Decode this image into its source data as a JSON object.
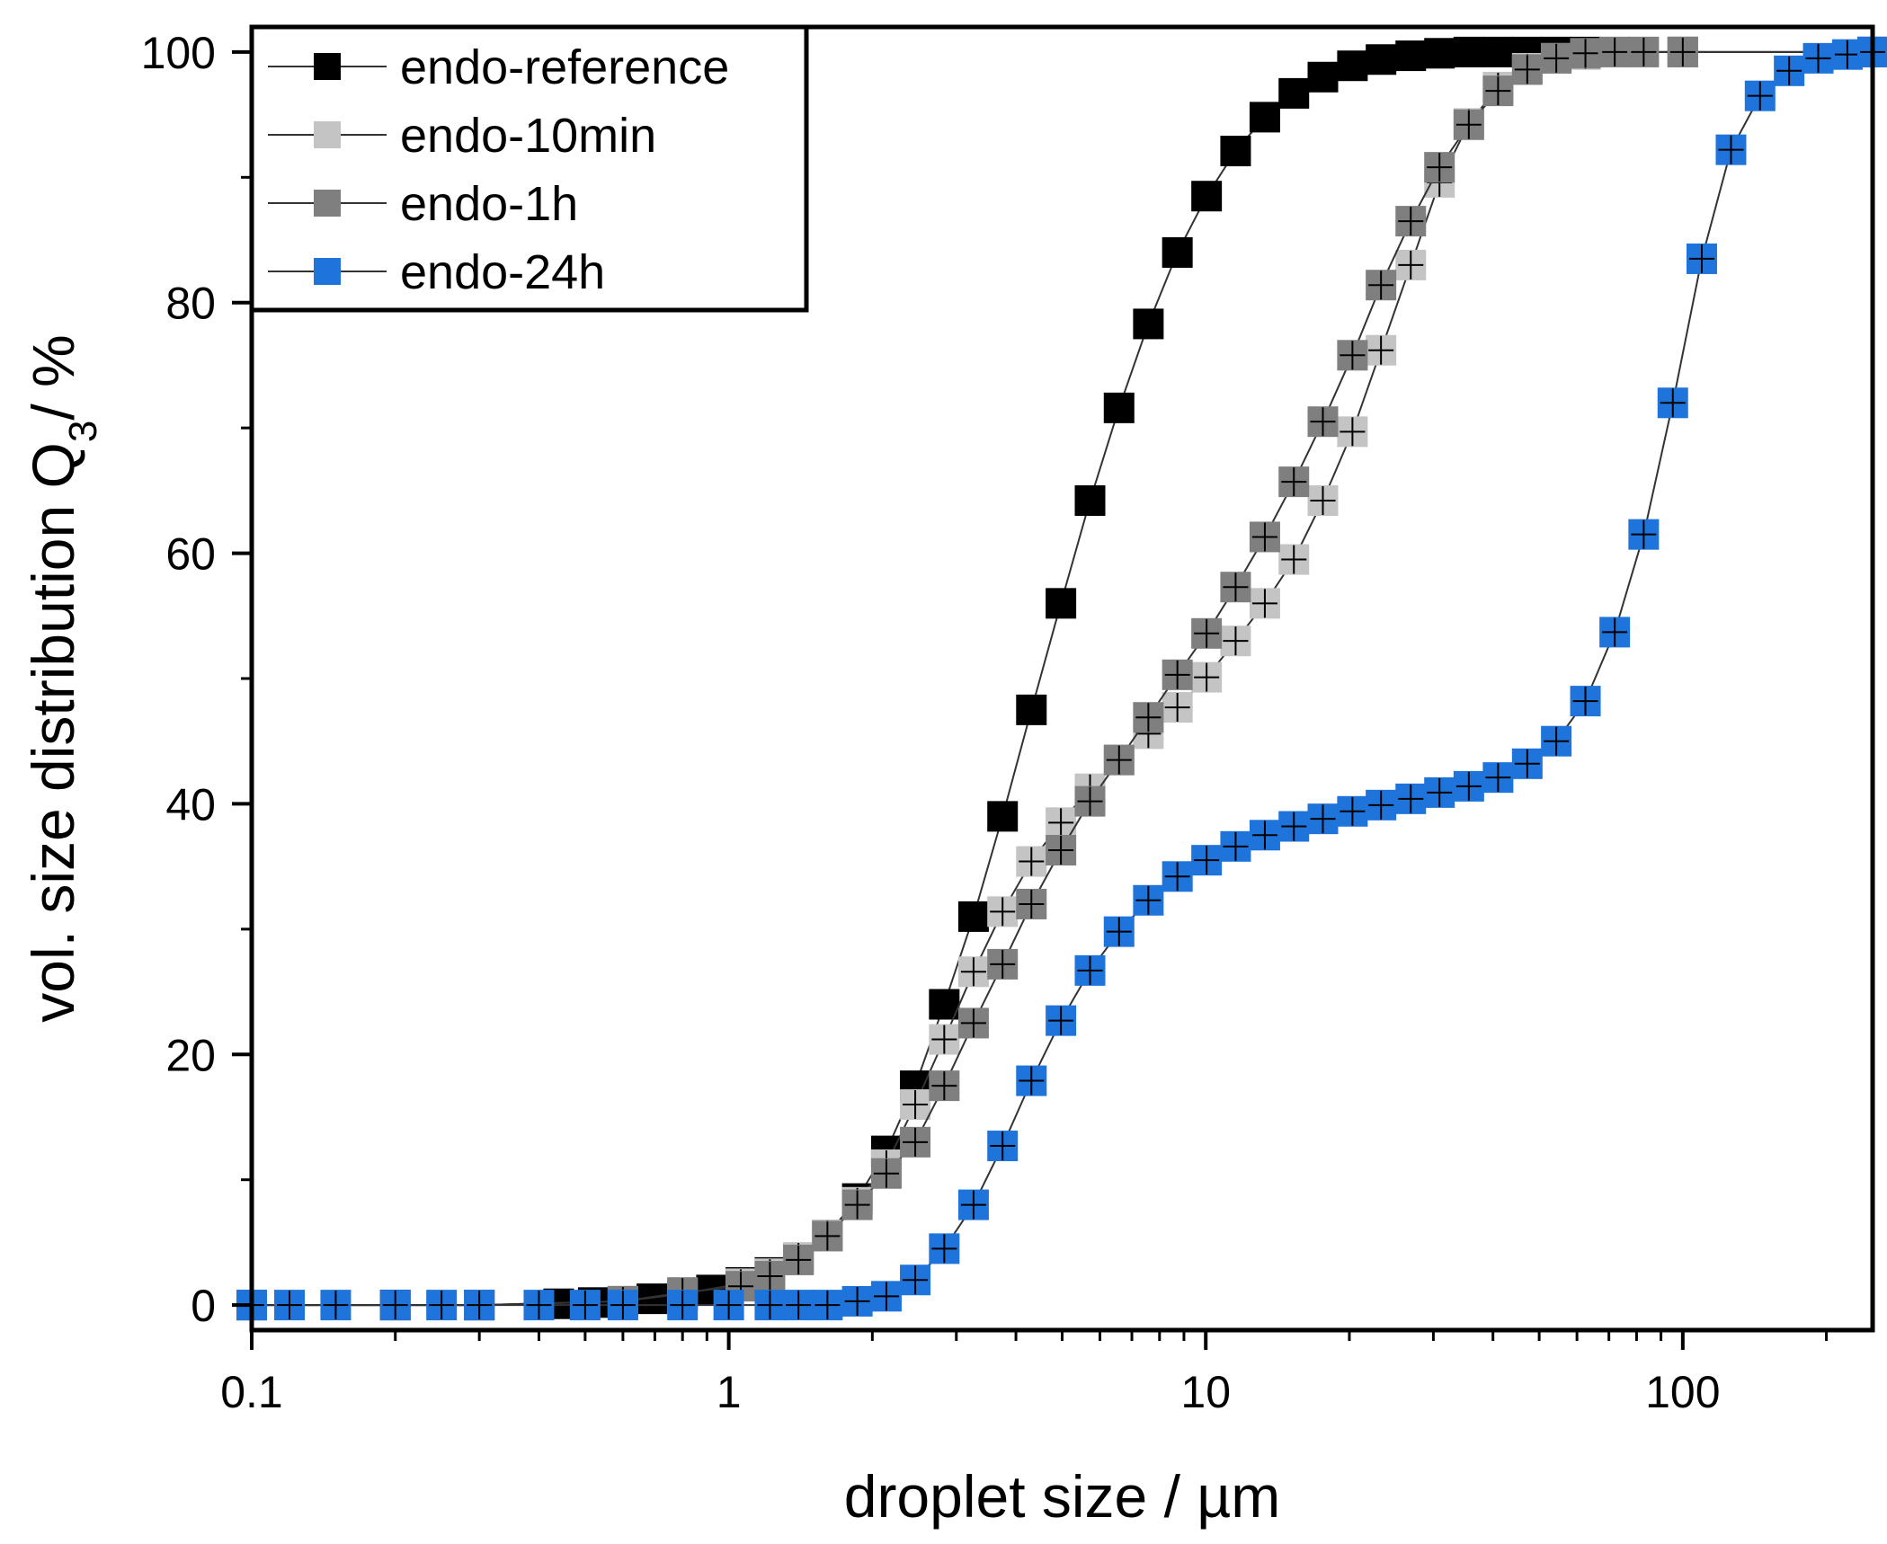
{
  "chart_data": {
    "type": "scatter",
    "x_scale": "log",
    "xlabel": "droplet size / µm",
    "ylabel_main": "vol. size distribution Q",
    "ylabel_sub": "3",
    "ylabel_tail": "/ %",
    "xlim": [
      0.1,
      250
    ],
    "ylim": [
      -2,
      102
    ],
    "x_ticks": [
      0.1,
      1,
      10,
      100
    ],
    "x_tick_labels": [
      "0.1",
      "1",
      "10",
      "100"
    ],
    "y_ticks": [
      0,
      20,
      40,
      60,
      80,
      100
    ],
    "y_tick_labels": [
      "0",
      "20",
      "40",
      "60",
      "80",
      "100"
    ],
    "legend_position": "top-left",
    "series": [
      {
        "name": "endo-reference",
        "color": "#000000",
        "x": [
          0.1,
          0.2,
          0.3,
          0.44,
          0.52,
          0.6,
          0.69,
          0.8,
          0.92,
          1.06,
          1.22,
          1.4,
          1.61,
          1.86,
          2.14,
          2.46,
          2.83,
          3.26,
          3.75,
          4.31,
          4.97,
          5.72,
          6.58,
          7.58,
          8.72,
          10.04,
          11.55,
          13.3,
          15.3,
          17.6,
          20.3,
          23.3,
          26.9,
          30.9,
          35.6,
          41,
          47.2,
          54.3,
          62.5,
          100,
          250
        ],
        "y": [
          0,
          0,
          0,
          0.1,
          0.2,
          0.3,
          0.5,
          0.8,
          1.2,
          1.8,
          2.6,
          3.7,
          5.6,
          8.5,
          12.3,
          17.5,
          24,
          31,
          39,
          47.5,
          56,
          64.2,
          71.6,
          78.3,
          84,
          88.5,
          92.1,
          94.8,
          96.7,
          98,
          98.9,
          99.4,
          99.7,
          99.9,
          100,
          100,
          100,
          100,
          100,
          100,
          100
        ]
      },
      {
        "name": "endo-10min",
        "color": "#c4c4c4",
        "x": [
          0.1,
          0.3,
          0.6,
          0.8,
          1.06,
          1.22,
          1.4,
          1.61,
          1.86,
          2.14,
          2.46,
          2.83,
          3.26,
          3.75,
          4.31,
          4.97,
          5.72,
          6.58,
          7.58,
          8.72,
          10.04,
          11.55,
          13.3,
          15.3,
          17.6,
          20.3,
          23.3,
          26.9,
          30.9,
          35.6,
          41,
          47.2,
          54.3,
          62.5,
          72,
          82.8,
          100,
          250
        ],
        "y": [
          0,
          0,
          0.3,
          0.9,
          1.7,
          2.5,
          3.8,
          5.6,
          8.2,
          11.2,
          16,
          21.2,
          26.6,
          31.4,
          35.4,
          38.5,
          41.2,
          43.5,
          45.6,
          47.7,
          50.1,
          53,
          56,
          59.5,
          64.2,
          69.7,
          76.2,
          83,
          89.6,
          94.3,
          97.2,
          98.7,
          99.5,
          99.8,
          100,
          100,
          100,
          100
        ]
      },
      {
        "name": "endo-1h",
        "color": "#7f7f7f",
        "x": [
          0.1,
          0.3,
          0.6,
          0.8,
          1.06,
          1.22,
          1.4,
          1.61,
          1.86,
          2.14,
          2.46,
          2.83,
          3.26,
          3.75,
          4.31,
          4.97,
          5.72,
          6.58,
          7.58,
          8.72,
          10.04,
          11.55,
          13.3,
          15.3,
          17.6,
          20.3,
          23.3,
          26.9,
          30.9,
          35.6,
          41,
          47.2,
          54.3,
          62.5,
          72,
          82.8,
          100,
          250
        ],
        "y": [
          0,
          0,
          0.3,
          1,
          1.5,
          2.3,
          3.6,
          5.5,
          8,
          10.5,
          13,
          17.5,
          22.5,
          27.2,
          32,
          36.3,
          40.2,
          43.5,
          46.9,
          50.3,
          53.6,
          57.3,
          61.3,
          65.7,
          70.5,
          75.8,
          81.4,
          86.5,
          90.8,
          94.2,
          96.9,
          98.6,
          99.5,
          99.9,
          100,
          100,
          100,
          100
        ]
      },
      {
        "name": "endo-24h",
        "color": "#1f74db",
        "x": [
          0.1,
          0.12,
          0.15,
          0.2,
          0.25,
          0.3,
          0.4,
          0.5,
          0.6,
          0.8,
          1,
          1.22,
          1.4,
          1.61,
          1.86,
          2.14,
          2.46,
          2.83,
          3.26,
          3.75,
          4.31,
          4.97,
          5.72,
          6.58,
          7.58,
          8.72,
          10.04,
          11.55,
          13.3,
          15.3,
          17.6,
          20.3,
          23.3,
          26.9,
          30.9,
          35.6,
          41,
          47.2,
          54.3,
          62.5,
          72,
          82.8,
          95.3,
          109.6,
          126.2,
          145.2,
          167.1,
          192.3,
          221.3,
          250
        ],
        "y": [
          0,
          0,
          0,
          0,
          0,
          0,
          0,
          0,
          0,
          0,
          0,
          0,
          0,
          0,
          0.3,
          0.7,
          2,
          4.5,
          8,
          12.7,
          17.9,
          22.7,
          26.7,
          29.8,
          32.3,
          34.2,
          35.5,
          36.6,
          37.5,
          38.2,
          38.8,
          39.4,
          39.9,
          40.4,
          40.9,
          41.4,
          42.1,
          43.2,
          45,
          48.2,
          53.7,
          61.5,
          72,
          83.5,
          92.2,
          96.5,
          98.5,
          99.5,
          99.8,
          100
        ]
      }
    ]
  }
}
